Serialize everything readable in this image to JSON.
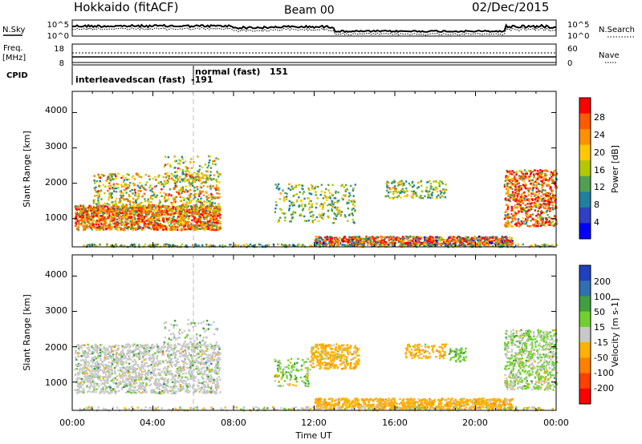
{
  "header": {
    "station": "Hokkaido (fitACF)",
    "beam": "Beam 00",
    "date": "02/Dec/2015"
  },
  "top_strip": {
    "nsky_label": "N.Sky",
    "nsky_ticks": [
      "10^5",
      "10^0"
    ],
    "nsearch_label": "N.Search",
    "nsearch_ticks": [
      "10^5",
      "10^0"
    ],
    "freq_label": "Freq.",
    "freq_unit": "[MHz]",
    "freq_ticks": [
      "18",
      "8"
    ],
    "nave_label": "Nave",
    "nave_ticks": [
      "60",
      "0"
    ],
    "cpid_label": "CPID",
    "cpid_annotations": [
      "interleavedscan (fast)",
      "-191",
      "normal (fast)",
      "151"
    ]
  },
  "chart_data": [
    {
      "type": "heatmap",
      "name": "power",
      "xlabel": "",
      "ylabel": "Slant Range [km]",
      "y_ticks": [
        "1000",
        "2000",
        "3000",
        "4000"
      ],
      "ylim": [
        200,
        4600
      ],
      "colorbar_label": "Power [dB]",
      "colorbar_ticks": [
        "28",
        "24",
        "20",
        "16",
        "12",
        "8",
        "4"
      ],
      "colorbar_colors": [
        "#ff0000",
        "#ff5a00",
        "#ff9100",
        "#ffc800",
        "#b4c800",
        "#50a050",
        "#2080a0",
        "#3040c0",
        "#0000ff"
      ]
    },
    {
      "type": "heatmap",
      "name": "velocity",
      "xlabel": "Time UT",
      "ylabel": "Slant Range [km]",
      "y_ticks": [
        "1000",
        "2000",
        "3000",
        "4000"
      ],
      "ylim": [
        200,
        4600
      ],
      "x_ticks": [
        "00:00",
        "04:00",
        "08:00",
        "12:00",
        "16:00",
        "20:00",
        "00:00"
      ],
      "colorbar_label": "Velocity [m s-1]",
      "colorbar_ticks": [
        "200",
        "100",
        "50",
        "15",
        "-15",
        "-50",
        "-100",
        "-200"
      ],
      "colorbar_colors": [
        "#2040c0",
        "#3070b0",
        "#40a040",
        "#70d030",
        "#c8c8c8",
        "#ffb000",
        "#ff8000",
        "#ff4000",
        "#ff0000"
      ]
    }
  ]
}
